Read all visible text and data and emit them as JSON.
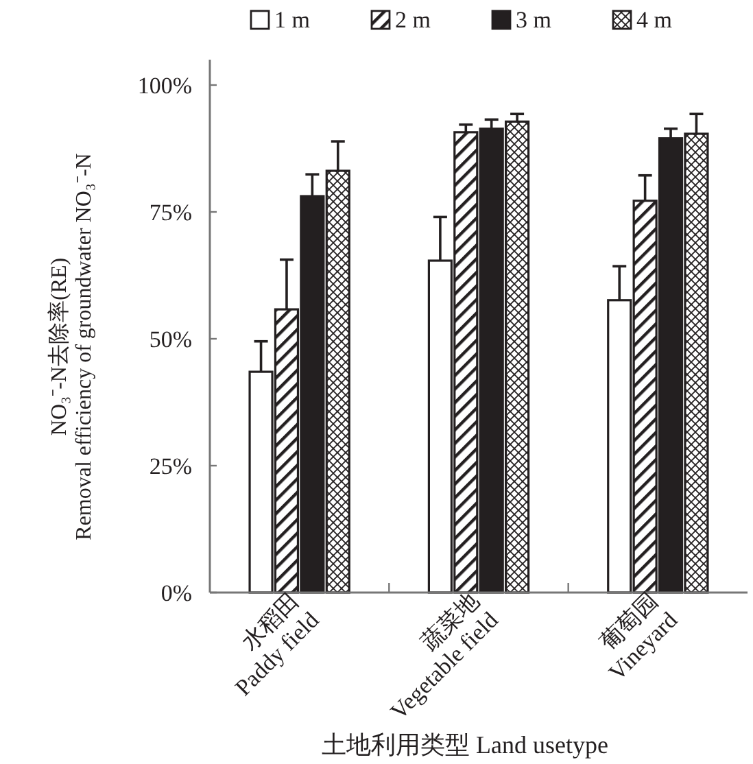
{
  "chart_data": {
    "type": "bar",
    "xlabel": "土地利用类型 Land usetype",
    "ylabel": "NO₃⁻-N去除率(RE)\nRemoval efficiency of groundwater NO₃⁻-N",
    "categories": [
      "水稻田\nPaddy field",
      "蔬菜地\nVegetable field",
      "葡萄园\nVineyard"
    ],
    "series": [
      {
        "name": "1 m",
        "color": "#ffffff",
        "values": [
          43.5,
          65.4,
          57.6
        ],
        "errors": [
          6.0,
          8.6,
          6.7
        ]
      },
      {
        "name": "2 m",
        "color": "#231f20",
        "values": [
          55.8,
          90.7,
          77.2
        ],
        "errors": [
          9.8,
          1.5,
          5.0
        ]
      },
      {
        "name": "3 m",
        "color": "#231f20",
        "values": [
          78.1,
          91.4,
          89.5
        ],
        "errors": [
          4.3,
          1.8,
          1.9
        ]
      },
      {
        "name": "4 m",
        "color": "#231f20",
        "values": [
          83.1,
          92.8,
          90.4
        ],
        "errors": [
          5.8,
          1.5,
          3.9
        ]
      }
    ],
    "ylim": [
      0,
      105
    ],
    "yticks": [
      {
        "value": 0,
        "label": "0%"
      },
      {
        "value": 25,
        "label": "25%"
      },
      {
        "value": 50,
        "label": "50%"
      },
      {
        "value": 75,
        "label": "75%"
      },
      {
        "value": 100,
        "label": "100%"
      }
    ],
    "legend": "top",
    "grid": false
  }
}
